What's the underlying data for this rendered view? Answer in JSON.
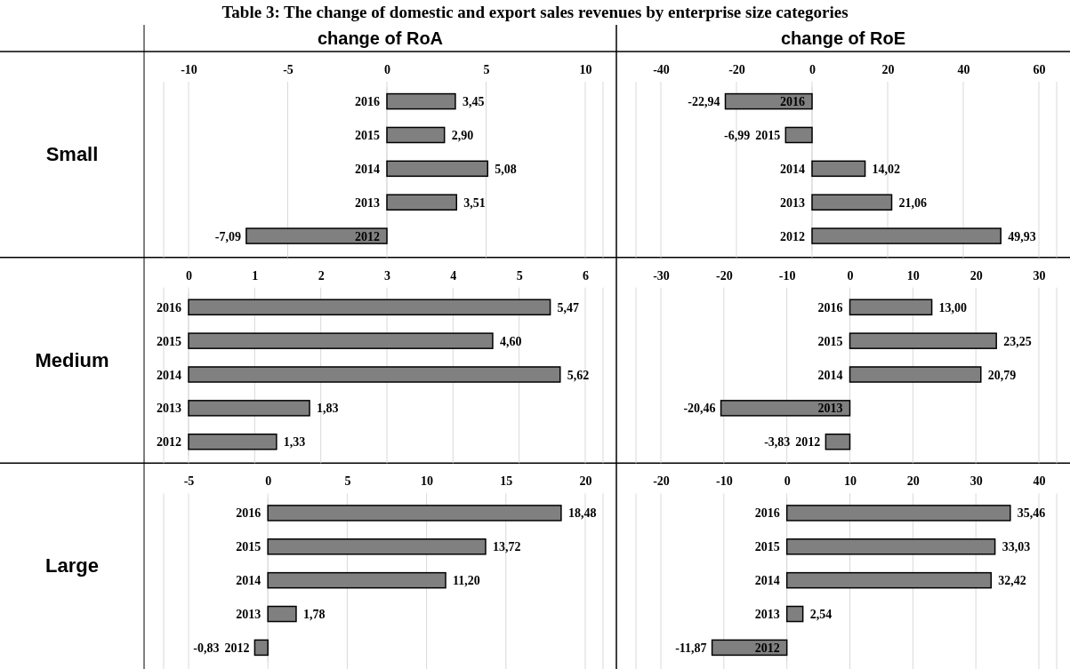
{
  "chart_data": [
    {
      "type": "other",
      "title": "Table 3: The change of domestic and export sales revenues by enterprise size categories",
      "annotations": [
        "change of RoA",
        "change of RoE",
        "Small",
        "Medium",
        "Large"
      ]
    },
    {
      "type": "bar",
      "orientation": "horizontal",
      "categories": [
        "2016",
        "2015",
        "2014",
        "2013",
        "2012"
      ],
      "values": [
        3.45,
        2.9,
        5.08,
        3.51,
        -7.09
      ],
      "value_labels": [
        "3,45",
        "2,90",
        "5,08",
        "3,51",
        "-7,09"
      ],
      "color": "#808080",
      "xlim": [
        -10,
        10
      ],
      "xticks": [
        -10,
        -5,
        0,
        5,
        10
      ],
      "grid": "x"
    },
    {
      "type": "bar",
      "orientation": "horizontal",
      "categories": [
        "2016",
        "2015",
        "2014",
        "2013",
        "2012"
      ],
      "values": [
        -22.94,
        -6.99,
        14.02,
        21.06,
        49.93
      ],
      "value_labels": [
        "-22,94",
        "-6,99",
        "14,02",
        "21,06",
        "49,93"
      ],
      "color": "#808080",
      "xlim": [
        -40,
        60
      ],
      "xticks": [
        -40,
        -20,
        0,
        20,
        40,
        60
      ],
      "grid": "x"
    },
    {
      "type": "bar",
      "orientation": "horizontal",
      "categories": [
        "2016",
        "2015",
        "2014",
        "2013",
        "2012"
      ],
      "values": [
        5.47,
        4.6,
        5.62,
        1.83,
        1.33
      ],
      "value_labels": [
        "5,47",
        "4,60",
        "5,62",
        "1,83",
        "1,33"
      ],
      "color": "#808080",
      "xlim": [
        0,
        6
      ],
      "xticks": [
        0,
        1,
        2,
        3,
        4,
        5,
        6
      ],
      "grid": "x"
    },
    {
      "type": "bar",
      "orientation": "horizontal",
      "categories": [
        "2016",
        "2015",
        "2014",
        "2013",
        "2012"
      ],
      "values": [
        13.0,
        23.25,
        20.79,
        -20.46,
        -3.83
      ],
      "value_labels": [
        "13,00",
        "23,25",
        "20,79",
        "-20,46",
        "-3,83"
      ],
      "color": "#808080",
      "xlim": [
        -30,
        30
      ],
      "xticks": [
        -30,
        -20,
        -10,
        0,
        10,
        20,
        30
      ],
      "grid": "x"
    },
    {
      "type": "bar",
      "orientation": "horizontal",
      "categories": [
        "2016",
        "2015",
        "2014",
        "2013",
        "2012"
      ],
      "values": [
        18.48,
        13.72,
        11.2,
        1.78,
        -0.83
      ],
      "value_labels": [
        "18,48",
        "13,72",
        "11,20",
        "1,78",
        "-0,83"
      ],
      "color": "#808080",
      "xlim": [
        -5,
        20
      ],
      "xticks": [
        -5,
        0,
        5,
        10,
        15,
        20
      ],
      "grid": "x"
    },
    {
      "type": "bar",
      "orientation": "horizontal",
      "categories": [
        "2016",
        "2015",
        "2014",
        "2013",
        "2012"
      ],
      "values": [
        35.46,
        33.03,
        32.42,
        2.54,
        -11.87
      ],
      "value_labels": [
        "35,46",
        "33,03",
        "32,42",
        "2,54",
        "-11,87"
      ],
      "color": "#808080",
      "xlim": [
        -20,
        40
      ],
      "xticks": [
        -20,
        -10,
        0,
        10,
        20,
        30,
        40
      ],
      "grid": "x"
    }
  ]
}
